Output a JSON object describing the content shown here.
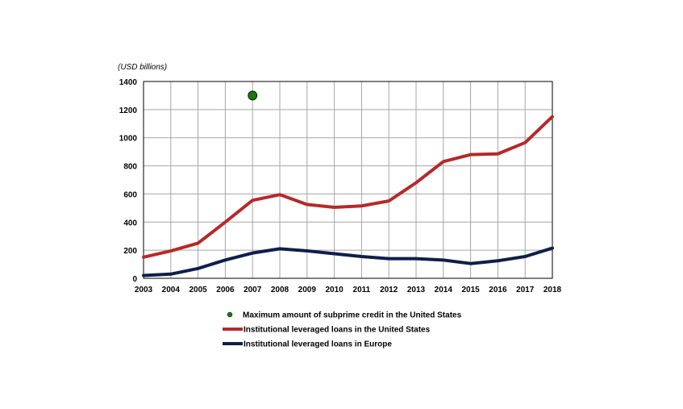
{
  "chart_data": {
    "type": "line",
    "ylabel": "(USD billions)",
    "xlabel": "",
    "ylim": [
      0,
      1400
    ],
    "yticks": [
      0,
      200,
      400,
      600,
      800,
      1000,
      1200,
      1400
    ],
    "grid": true,
    "x": [
      2003,
      2004,
      2005,
      2006,
      2007,
      2008,
      2009,
      2010,
      2011,
      2012,
      2013,
      2014,
      2015,
      2016,
      2017,
      2018
    ],
    "x_labels": [
      "2003",
      "2004",
      "2005",
      "2006",
      "2007",
      "2008",
      "2009",
      "2010",
      "2011",
      "2012",
      "2013",
      "2014",
      "2015",
      "2016",
      "2017",
      "2018"
    ],
    "y_labels": [
      "0",
      "200",
      "400",
      "600",
      "800",
      "1000",
      "1200",
      "1400"
    ],
    "series": [
      {
        "name": "Maximum amount of subprime credit in the United States",
        "kind": "point",
        "color": "#1a7a10",
        "points": [
          {
            "x": 2007,
            "y": 1300
          }
        ]
      },
      {
        "name": "Institutional leveraged loans in the United States",
        "kind": "line",
        "color": "#b52a2a",
        "values": [
          150,
          195,
          250,
          400,
          555,
          595,
          525,
          505,
          515,
          550,
          680,
          830,
          880,
          885,
          965,
          1150
        ]
      },
      {
        "name": "Institutional leveraged loans in Europe",
        "kind": "line",
        "color": "#0f1f4a",
        "values": [
          20,
          30,
          70,
          130,
          180,
          210,
          195,
          175,
          155,
          140,
          140,
          130,
          105,
          125,
          155,
          215
        ]
      }
    ],
    "legend": "bottom"
  }
}
